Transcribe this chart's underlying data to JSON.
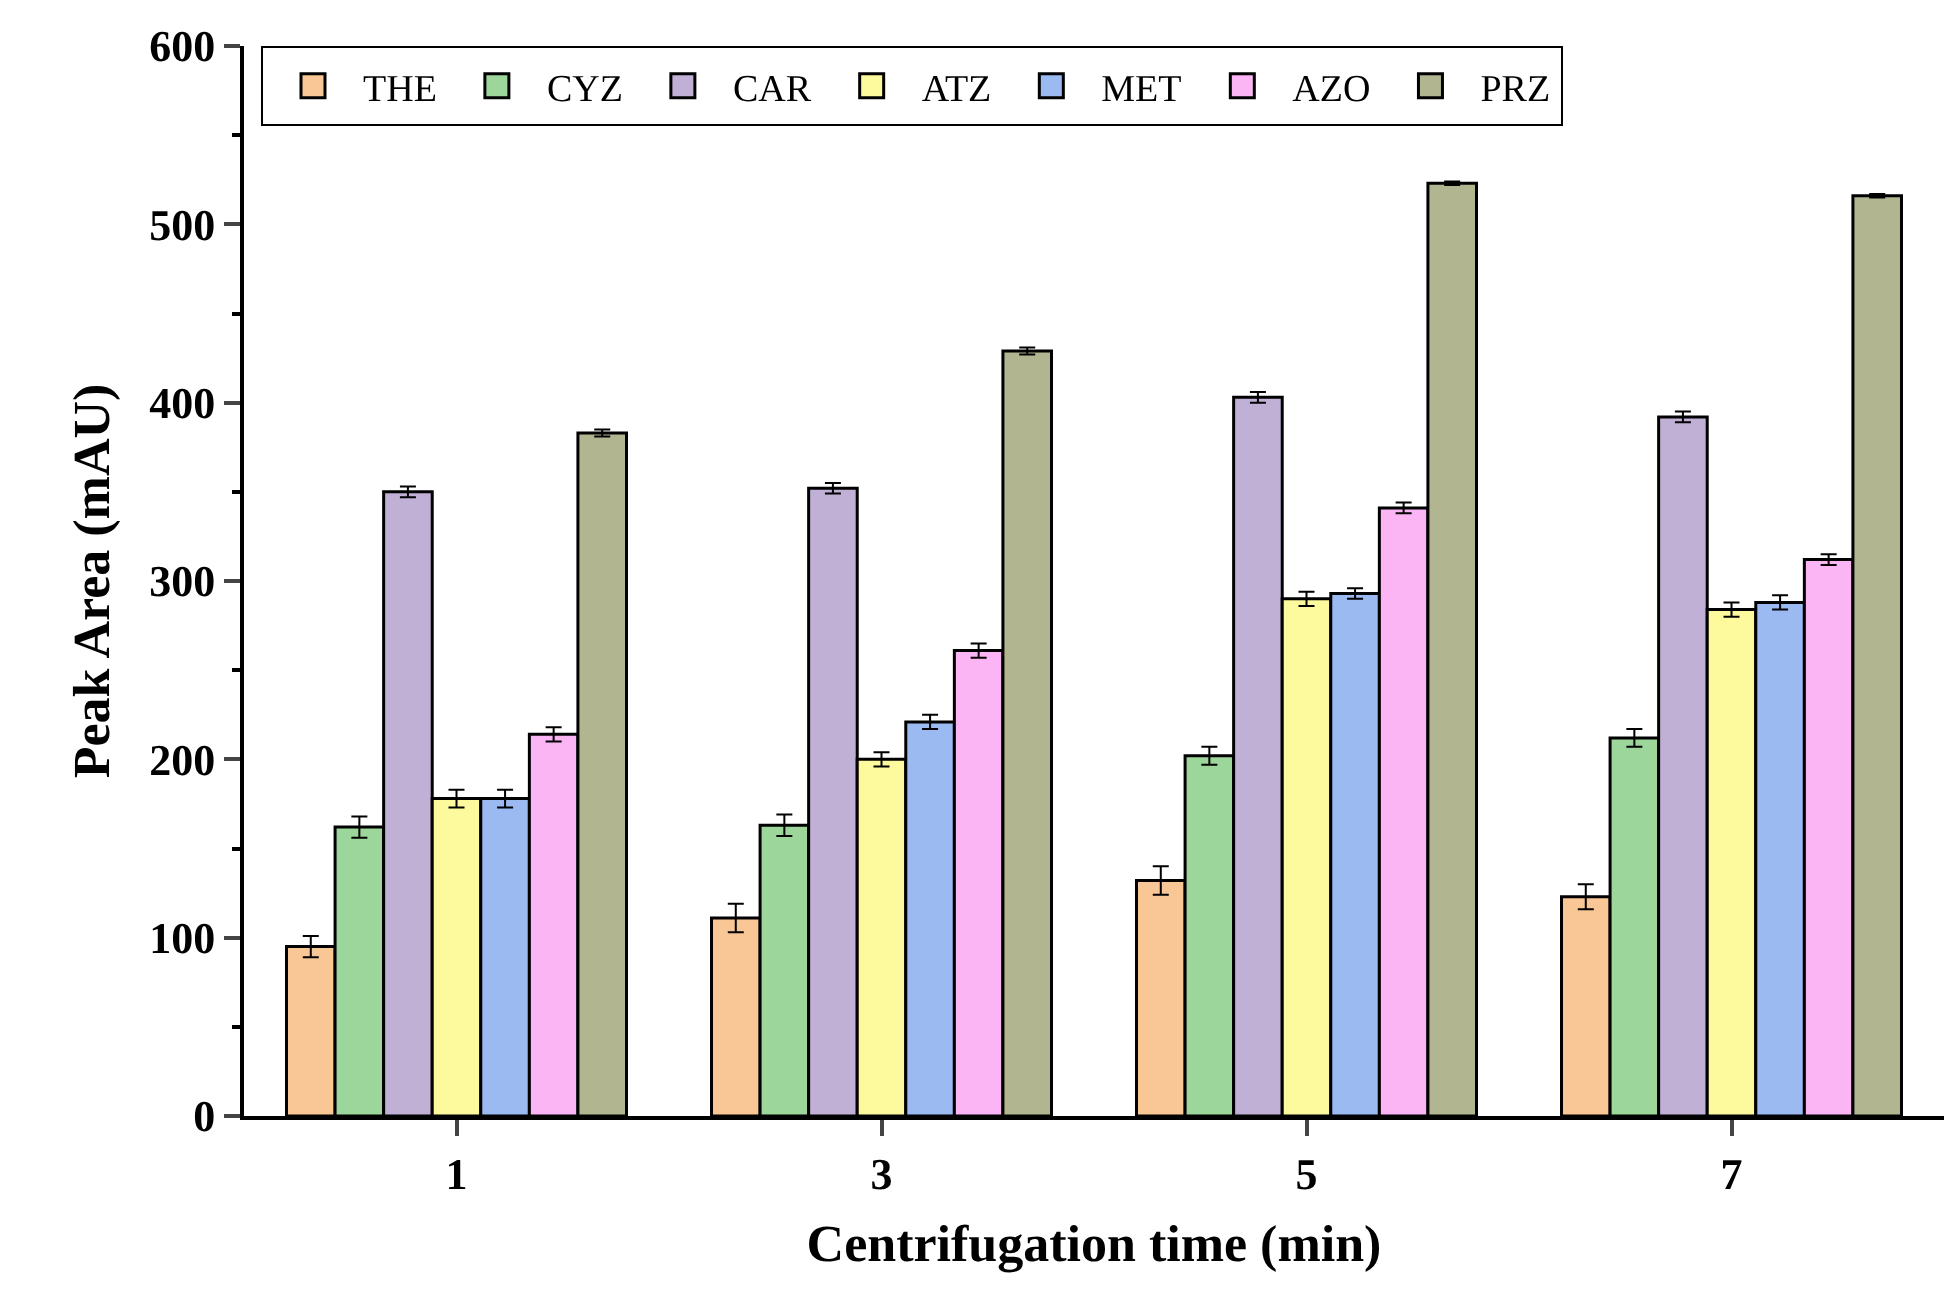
{
  "chart_data": {
    "type": "bar",
    "xlabel": "Centrifugation time (min)",
    "ylabel": "Peak Area (mAU)",
    "categories": [
      "1",
      "3",
      "5",
      "7"
    ],
    "series": [
      {
        "name": "THE",
        "color": "#f9c795",
        "values": [
          95,
          111,
          132,
          123
        ],
        "errors": [
          6,
          8,
          8,
          7
        ]
      },
      {
        "name": "CYZ",
        "color": "#9dd69b",
        "values": [
          162,
          163,
          202,
          212
        ],
        "errors": [
          6,
          6,
          5,
          5
        ]
      },
      {
        "name": "CAR",
        "color": "#c1b0d6",
        "values": [
          350,
          352,
          403,
          392
        ],
        "errors": [
          3,
          3,
          3,
          3
        ]
      },
      {
        "name": "ATZ",
        "color": "#fdfa9d",
        "values": [
          178,
          200,
          290,
          284
        ],
        "errors": [
          5,
          4,
          4,
          4
        ]
      },
      {
        "name": "MET",
        "color": "#9bbaf2",
        "values": [
          178,
          221,
          293,
          288
        ],
        "errors": [
          5,
          4,
          3,
          4
        ]
      },
      {
        "name": "AZO",
        "color": "#fbb5f4",
        "values": [
          214,
          261,
          341,
          312
        ],
        "errors": [
          4,
          4,
          3,
          3
        ]
      },
      {
        "name": "PRZ",
        "color": "#b2b690",
        "values": [
          383,
          429,
          523,
          516
        ],
        "errors": [
          2,
          2,
          1,
          1
        ]
      }
    ],
    "ylim": [
      0,
      600
    ],
    "yticks": [
      0,
      100,
      200,
      300,
      400,
      500,
      600
    ],
    "grid": false,
    "legend": "top"
  }
}
